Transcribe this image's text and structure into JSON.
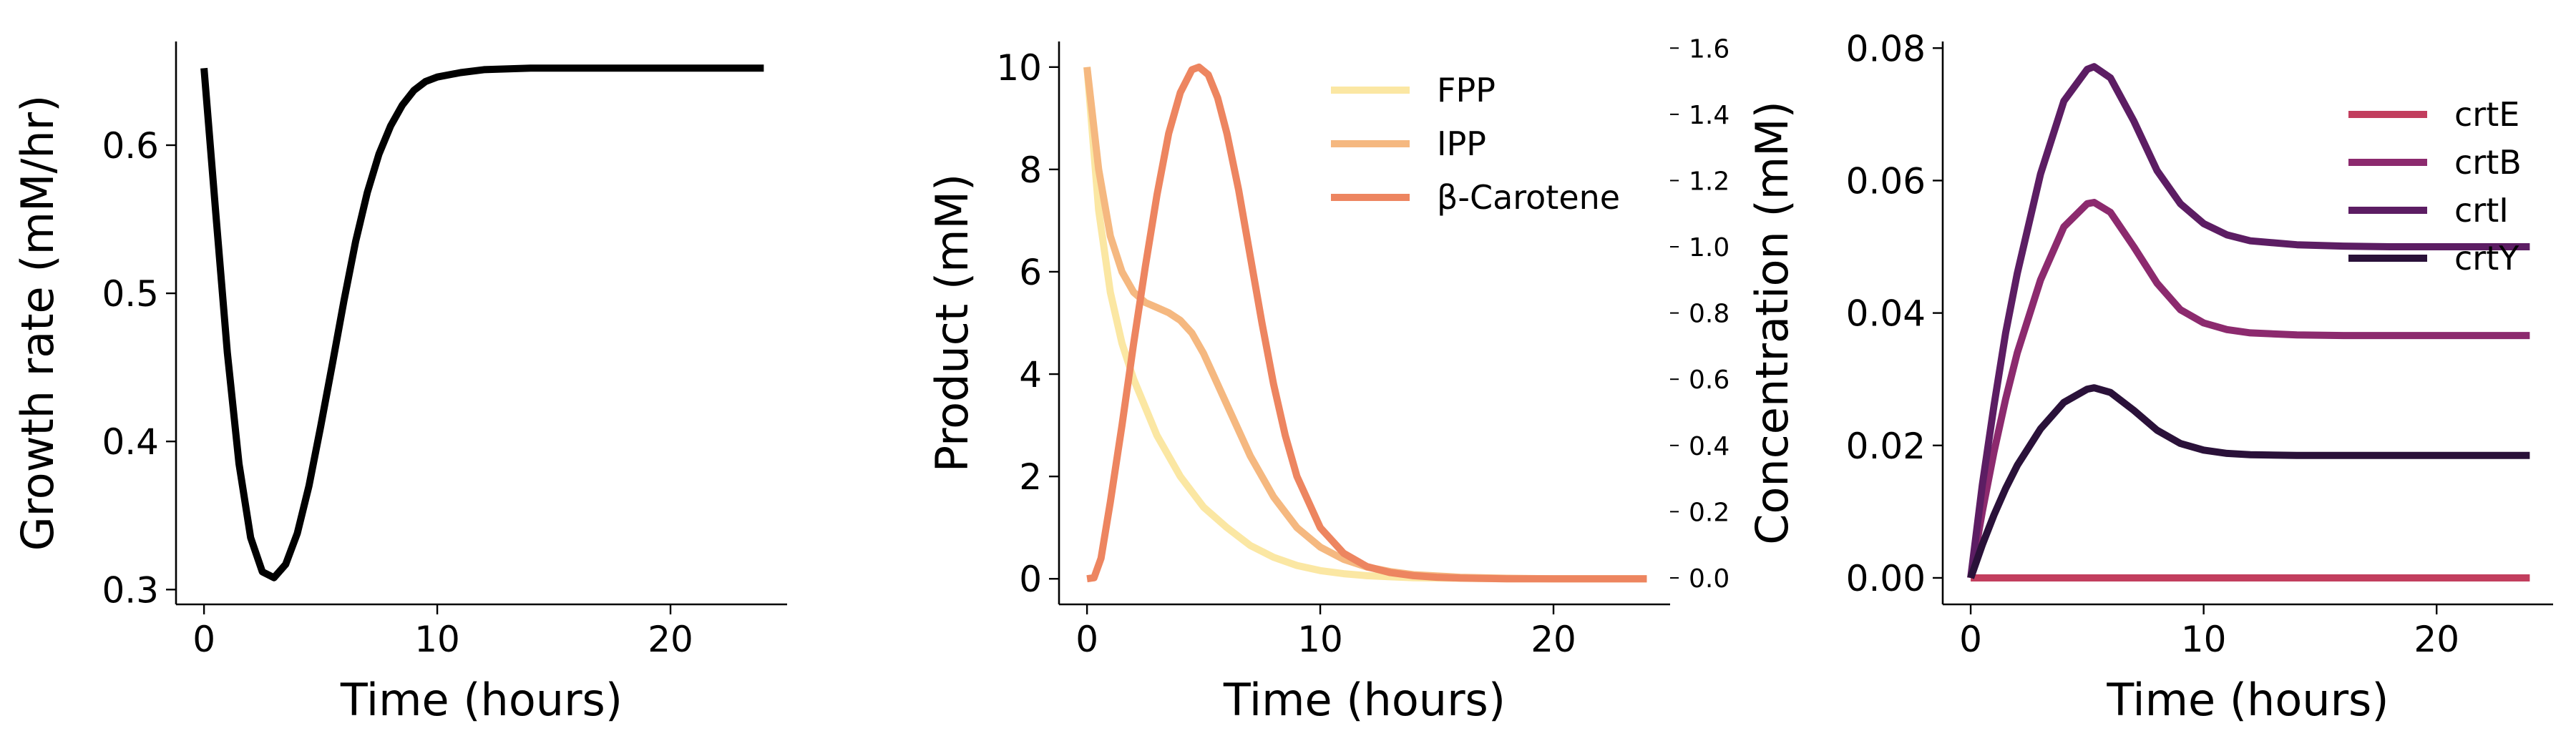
{
  "chart_data": [
    {
      "type": "line",
      "xlabel": "Time (hours)",
      "ylabel": "Growth rate (mM/hr)",
      "xlim": [
        -1.2,
        25.0
      ],
      "ylim": [
        0.29,
        0.67
      ],
      "xticks": [
        0,
        10,
        20
      ],
      "yticks": [
        0.3,
        0.4,
        0.5,
        0.6
      ],
      "xtick_labels": [
        "0",
        "10",
        "20"
      ],
      "ytick_labels": [
        "0.3",
        "0.4",
        "0.5",
        "0.6"
      ],
      "grid": false,
      "series": [
        {
          "color": "#000000",
          "x": [
            0,
            0.5,
            1,
            1.5,
            2,
            2.5,
            3,
            3.5,
            4,
            4.5,
            5,
            5.5,
            6,
            6.5,
            7,
            7.5,
            8,
            8.5,
            9,
            9.5,
            10,
            11,
            12,
            14,
            16,
            18,
            20,
            22,
            24
          ],
          "y": [
            0.652,
            0.555,
            0.46,
            0.385,
            0.335,
            0.312,
            0.308,
            0.317,
            0.338,
            0.37,
            0.41,
            0.452,
            0.495,
            0.535,
            0.568,
            0.594,
            0.613,
            0.627,
            0.637,
            0.643,
            0.646,
            0.649,
            0.651,
            0.652,
            0.652,
            0.652,
            0.652,
            0.652,
            0.652
          ]
        }
      ]
    },
    {
      "type": "line",
      "xlabel": "Time (hours)",
      "ylabel": "Product (mM)",
      "xlim": [
        -1.2,
        25.0
      ],
      "ylim": [
        -0.5,
        10.5
      ],
      "xticks": [
        0,
        10,
        20
      ],
      "yticks": [
        0,
        2,
        4,
        6,
        8,
        10
      ],
      "xtick_labels": [
        "0",
        "10",
        "20"
      ],
      "ytick_labels": [
        "0",
        "2",
        "4",
        "6",
        "8",
        "10"
      ],
      "y2lim": [
        -0.08,
        1.62
      ],
      "y2ticks": [
        0.0,
        0.2,
        0.4,
        0.6,
        0.8,
        1.0,
        1.2,
        1.4,
        1.6
      ],
      "y2tick_labels": [
        "0.0",
        "0.2",
        "0.4",
        "0.6",
        "0.8",
        "1.0",
        "1.2",
        "1.4",
        "1.6"
      ],
      "legend": "top-right",
      "grid": false,
      "series": [
        {
          "name": "FPP",
          "color": "#fbe7a3",
          "x": [
            0,
            0.5,
            1,
            1.5,
            2,
            3,
            4,
            5,
            6,
            7,
            8,
            9,
            10,
            11,
            12,
            13,
            14,
            16,
            18,
            20,
            24
          ],
          "y": [
            10,
            7.2,
            5.6,
            4.6,
            3.9,
            2.8,
            2.0,
            1.4,
            1.0,
            0.65,
            0.42,
            0.26,
            0.16,
            0.1,
            0.06,
            0.04,
            0.02,
            0.01,
            0.0,
            0.0,
            0.0
          ]
        },
        {
          "name": "IPP",
          "color": "#f5b880",
          "x": [
            0,
            0.5,
            1,
            1.5,
            2,
            2.5,
            3,
            3.5,
            4,
            4.5,
            5,
            6,
            7,
            8,
            9,
            10,
            11,
            12,
            13,
            14,
            16,
            18,
            20,
            24
          ],
          "y": [
            10,
            8.0,
            6.7,
            6.0,
            5.6,
            5.4,
            5.3,
            5.2,
            5.05,
            4.8,
            4.4,
            3.4,
            2.4,
            1.6,
            1.0,
            0.62,
            0.38,
            0.23,
            0.14,
            0.08,
            0.03,
            0.01,
            0.0,
            0.0
          ]
        },
        {
          "name": "$\\beta$-Carotene",
          "label": "β-Carotene",
          "color": "#ed8560",
          "x": [
            0,
            0.3,
            0.6,
            1,
            1.5,
            2,
            2.5,
            3,
            3.5,
            4,
            4.5,
            4.8,
            5.2,
            5.6,
            6,
            6.5,
            7,
            7.5,
            8,
            8.5,
            9,
            10,
            11,
            12,
            13,
            14,
            15,
            16,
            18,
            20,
            22,
            24
          ],
          "y": [
            0,
            0.02,
            0.4,
            1.5,
            3.0,
            4.6,
            6.1,
            7.5,
            8.7,
            9.5,
            9.95,
            10.0,
            9.85,
            9.4,
            8.7,
            7.6,
            6.3,
            5.0,
            3.8,
            2.8,
            2.0,
            1.0,
            0.5,
            0.24,
            0.12,
            0.06,
            0.03,
            0.015,
            0.0,
            0.0,
            0.0,
            0.0
          ]
        }
      ]
    },
    {
      "type": "line",
      "xlabel": "Time (hours)",
      "ylabel": "Concentration (mM)",
      "xlim": [
        -1.2,
        25.0
      ],
      "ylim": [
        -0.004,
        0.081
      ],
      "xticks": [
        0,
        10,
        20
      ],
      "yticks": [
        0.0,
        0.02,
        0.04,
        0.06,
        0.08
      ],
      "xtick_labels": [
        "0",
        "10",
        "20"
      ],
      "ytick_labels": [
        "0.00",
        "0.02",
        "0.04",
        "0.06",
        "0.08"
      ],
      "legend": "top-right",
      "grid": false,
      "series": [
        {
          "name": "crtE",
          "color": "#c23e5e",
          "x": [
            0,
            24
          ],
          "y": [
            0.0,
            0.0
          ]
        },
        {
          "name": "crtB",
          "color": "#8c2a6e",
          "x": [
            0,
            0.5,
            1,
            1.5,
            2,
            3,
            4,
            5,
            5.3,
            6,
            7,
            8,
            9,
            10,
            11,
            12,
            14,
            16,
            18,
            20,
            24
          ],
          "y": [
            0,
            0.01,
            0.019,
            0.027,
            0.034,
            0.045,
            0.053,
            0.0565,
            0.0567,
            0.0552,
            0.05,
            0.0445,
            0.0405,
            0.0385,
            0.0375,
            0.037,
            0.0367,
            0.0366,
            0.0366,
            0.0366,
            0.0366
          ]
        },
        {
          "name": "crtI",
          "color": "#5c1d63",
          "x": [
            0,
            0.5,
            1,
            1.5,
            2,
            3,
            4,
            5,
            5.3,
            6,
            7,
            8,
            9,
            10,
            11,
            12,
            14,
            16,
            18,
            20,
            24
          ],
          "y": [
            0,
            0.014,
            0.026,
            0.037,
            0.046,
            0.061,
            0.072,
            0.0768,
            0.0772,
            0.0755,
            0.069,
            0.0615,
            0.0565,
            0.0535,
            0.0518,
            0.0509,
            0.0503,
            0.0501,
            0.05,
            0.05,
            0.05
          ]
        },
        {
          "name": "crtY",
          "color": "#2a1139",
          "x": [
            0,
            0.5,
            1,
            1.5,
            2,
            3,
            4,
            5,
            5.3,
            6,
            7,
            8,
            9,
            10,
            11,
            12,
            14,
            16,
            18,
            20,
            24
          ],
          "y": [
            0,
            0.005,
            0.0095,
            0.0135,
            0.017,
            0.0225,
            0.0265,
            0.0285,
            0.0287,
            0.028,
            0.0253,
            0.0223,
            0.0203,
            0.0193,
            0.0188,
            0.0186,
            0.0185,
            0.0185,
            0.0185,
            0.0185,
            0.0185
          ]
        }
      ]
    }
  ]
}
